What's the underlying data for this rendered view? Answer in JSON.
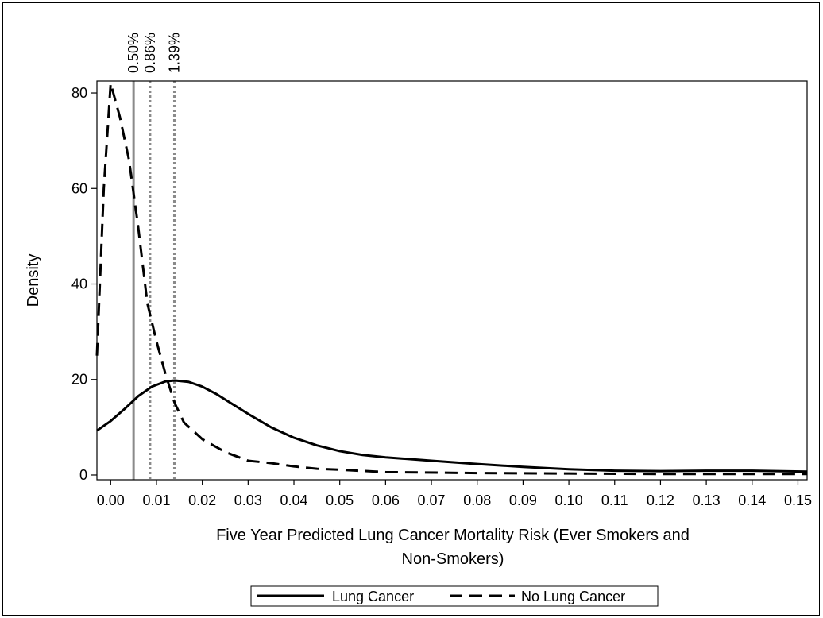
{
  "chart_data": {
    "type": "line",
    "xlabel": "Five Year Predicted Lung Cancer Mortality Risk (Ever Smokers and Non-Smokers)",
    "xlabel_lines": [
      "Five Year Predicted Lung Cancer Mortality Risk (Ever Smokers and",
      "Non-Smokers)"
    ],
    "ylabel": "Density",
    "xlim": [
      -0.003,
      0.152
    ],
    "ylim": [
      -1,
      82.5
    ],
    "xticks": [
      "0.00",
      "0.01",
      "0.02",
      "0.03",
      "0.04",
      "0.05",
      "0.06",
      "0.07",
      "0.08",
      "0.09",
      "0.10",
      "0.11",
      "0.12",
      "0.13",
      "0.14",
      "0.15"
    ],
    "xtick_values": [
      0,
      0.01,
      0.02,
      0.03,
      0.04,
      0.05,
      0.06,
      0.07,
      0.08,
      0.09,
      0.1,
      0.11,
      0.12,
      0.13,
      0.14,
      0.15
    ],
    "yticks": [
      "0",
      "20",
      "40",
      "60",
      "80"
    ],
    "ytick_values": [
      0,
      20,
      40,
      60,
      80
    ],
    "grid": false,
    "legend": {
      "placement": "bottom-center",
      "entries": [
        "Lung Cancer",
        "No Lung Cancer"
      ]
    },
    "series": [
      {
        "name": "Lung Cancer",
        "style": "solid",
        "points": [
          [
            -0.003,
            9.3
          ],
          [
            0.0,
            11.3
          ],
          [
            0.003,
            13.8
          ],
          [
            0.006,
            16.5
          ],
          [
            0.009,
            18.5
          ],
          [
            0.012,
            19.6
          ],
          [
            0.014,
            19.8
          ],
          [
            0.017,
            19.5
          ],
          [
            0.02,
            18.5
          ],
          [
            0.023,
            17.0
          ],
          [
            0.026,
            15.2
          ],
          [
            0.03,
            12.8
          ],
          [
            0.035,
            10.0
          ],
          [
            0.04,
            7.8
          ],
          [
            0.045,
            6.2
          ],
          [
            0.05,
            5.0
          ],
          [
            0.055,
            4.2
          ],
          [
            0.06,
            3.7
          ],
          [
            0.07,
            3.0
          ],
          [
            0.08,
            2.3
          ],
          [
            0.09,
            1.7
          ],
          [
            0.1,
            1.2
          ],
          [
            0.11,
            0.9
          ],
          [
            0.12,
            0.8
          ],
          [
            0.13,
            0.9
          ],
          [
            0.14,
            0.9
          ],
          [
            0.152,
            0.7
          ]
        ]
      },
      {
        "name": "No Lung Cancer",
        "style": "dashed",
        "points": [
          [
            -0.003,
            25.0
          ],
          [
            -0.0015,
            60.0
          ],
          [
            0.0,
            82.0
          ],
          [
            0.002,
            75.0
          ],
          [
            0.004,
            66.0
          ],
          [
            0.006,
            52.0
          ],
          [
            0.008,
            36.0
          ],
          [
            0.01,
            28.0
          ],
          [
            0.012,
            21.0
          ],
          [
            0.014,
            15.0
          ],
          [
            0.016,
            11.0
          ],
          [
            0.02,
            7.5
          ],
          [
            0.025,
            4.8
          ],
          [
            0.03,
            3.0
          ],
          [
            0.035,
            2.5
          ],
          [
            0.04,
            1.8
          ],
          [
            0.045,
            1.3
          ],
          [
            0.05,
            1.1
          ],
          [
            0.06,
            0.6
          ],
          [
            0.08,
            0.4
          ],
          [
            0.1,
            0.3
          ],
          [
            0.12,
            0.2
          ],
          [
            0.152,
            0.2
          ]
        ]
      }
    ],
    "reference_lines": [
      {
        "x": 0.005,
        "label": "0.50%",
        "style": "solid",
        "color": "#8a8a8a"
      },
      {
        "x": 0.0086,
        "label": "0.86%",
        "style": "dotted",
        "color": "#8a8a8a"
      },
      {
        "x": 0.0139,
        "label": "1.39%",
        "style": "dotted",
        "color": "#8a8a8a"
      }
    ]
  }
}
